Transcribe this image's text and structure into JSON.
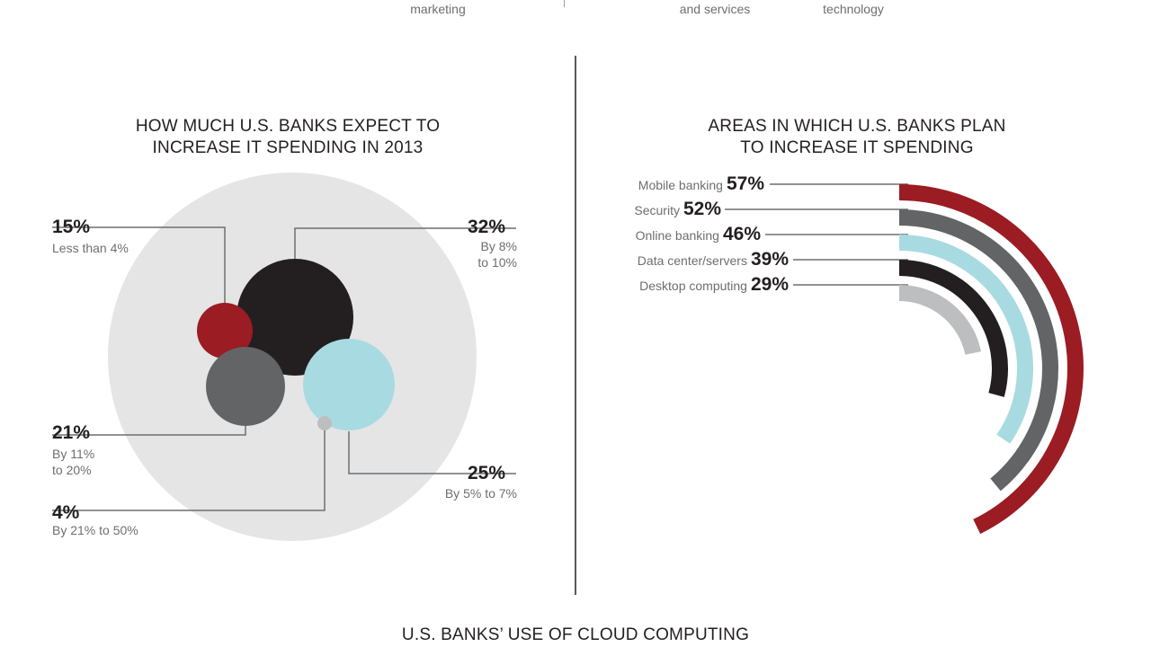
{
  "top_labels": [
    "marketing",
    "and services",
    "technology"
  ],
  "left_chart": {
    "title_line1": "HOW MUCH U.S. BANKS EXPECT TO",
    "title_line2": "INCREASE IT SPENDING IN 2013"
  },
  "right_chart": {
    "title_line1": "AREAS IN WHICH U.S. BANKS PLAN",
    "title_line2": "TO INCREASE IT SPENDING"
  },
  "bottom_title": "U.S. BANKS’ USE OF CLOUD COMPUTING",
  "colors": {
    "red": "#9b1c23",
    "black": "#231f20",
    "dark_gray": "#636466",
    "cyan": "#a8dbe1",
    "light_gray": "#bcbec0",
    "background_circle": "#e5e5e5"
  },
  "chart_data": [
    {
      "type": "bubble",
      "title": "HOW MUCH U.S. BANKS EXPECT TO INCREASE IT SPENDING IN 2013",
      "categories": [
        "Less than 4%",
        "By 8% to 10%",
        "By 11% to 20%",
        "By 5% to 7%",
        "By 21% to 50%"
      ],
      "values": [
        15,
        32,
        21,
        25,
        4
      ],
      "labels": [
        {
          "pct": "15%",
          "desc": [
            "Less than 4%"
          ],
          "color": "red"
        },
        {
          "pct": "32%",
          "desc": [
            "By 8%",
            "to 10%"
          ],
          "color": "black"
        },
        {
          "pct": "21%",
          "desc": [
            "By 11%",
            "to 20%"
          ],
          "color": "dark_gray"
        },
        {
          "pct": "25%",
          "desc": [
            "By 5% to 7%"
          ],
          "color": "cyan"
        },
        {
          "pct": "4%",
          "desc": [
            "By 21% to 50%"
          ],
          "color": "light_gray"
        }
      ]
    },
    {
      "type": "radial_bar",
      "title": "AREAS IN WHICH U.S. BANKS PLAN TO INCREASE IT SPENDING",
      "categories": [
        "Mobile banking",
        "Security",
        "Online banking",
        "Data center/servers",
        "Desktop computing"
      ],
      "values": [
        57,
        52,
        46,
        39,
        29
      ],
      "value_labels": [
        "57%",
        "52%",
        "46%",
        "39%",
        "29%"
      ],
      "series_colors": [
        "red",
        "dark_gray",
        "cyan",
        "black",
        "light_gray"
      ]
    }
  ]
}
